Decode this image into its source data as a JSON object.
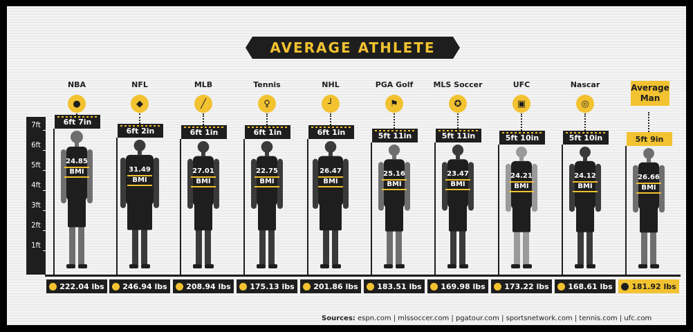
{
  "title": "AVERAGE ATHLETE",
  "y_axis": [
    "7ft",
    "6ft",
    "5ft",
    "4ft",
    "3ft",
    "2ft",
    "1ft"
  ],
  "columns": [
    {
      "label": "NBA",
      "height": "6ft 7in",
      "bmi": "24.85",
      "bmi_label": "BMI",
      "weight": "222.04 lbs",
      "icon": "basketball-icon"
    },
    {
      "label": "NFL",
      "height": "6ft 2in",
      "bmi": "31.49",
      "bmi_label": "BMI",
      "weight": "246.94 lbs",
      "icon": "football-icon"
    },
    {
      "label": "MLB",
      "height": "6ft 1in",
      "bmi": "27.01",
      "bmi_label": "BMI",
      "weight": "208.94 lbs",
      "icon": "baseball-bat-icon"
    },
    {
      "label": "Tennis",
      "height": "6ft 1in",
      "bmi": "22.75",
      "bmi_label": "BMI",
      "weight": "175.13 lbs",
      "icon": "tennis-racket-icon"
    },
    {
      "label": "NHL",
      "height": "6ft 1in",
      "bmi": "26.47",
      "bmi_label": "BMI",
      "weight": "201.86 lbs",
      "icon": "hockey-stick-icon"
    },
    {
      "label": "PGA Golf",
      "height": "5ft 11in",
      "bmi": "25.16",
      "bmi_label": "BMI",
      "weight": "183.51 lbs",
      "icon": "golf-flag-icon"
    },
    {
      "label": "MLS Soccer",
      "height": "5ft 11in",
      "bmi": "23.47",
      "bmi_label": "BMI",
      "weight": "169.98 lbs",
      "icon": "soccer-ball-icon"
    },
    {
      "label": "UFC",
      "height": "5ft 10in",
      "bmi": "24.21",
      "bmi_label": "BMI",
      "weight": "173.22 lbs",
      "icon": "fight-glove-icon"
    },
    {
      "label": "Nascar",
      "height": "5ft 10in",
      "bmi": "24.12",
      "bmi_label": "BMI",
      "weight": "168.61 lbs",
      "icon": "steering-wheel-icon"
    },
    {
      "label": "Average\nMan",
      "height": "5ft 9in",
      "bmi": "26.66",
      "bmi_label": "BMI",
      "weight": "181.92 lbs",
      "icon": ""
    }
  ],
  "sources_label": "Sources:",
  "sources_text": "espn.com | mlssoccer.com | pgatour.com | sportsnetwork.com | tennis.com | ufc.com",
  "colors": {
    "accent": "#f2c230",
    "dark": "#1e1e1e"
  }
}
